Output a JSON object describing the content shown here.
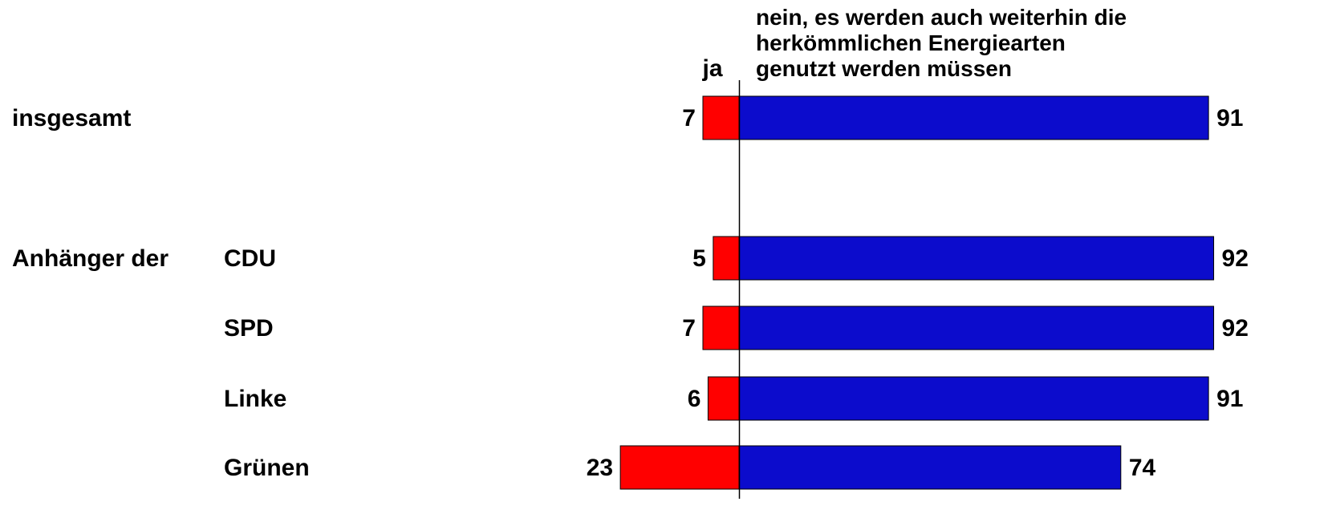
{
  "chart_data": {
    "type": "diverging-bar",
    "group_label": "Anhänger der",
    "categories": [
      "insgesamt",
      "CDU",
      "SPD",
      "Linke",
      "Grünen"
    ],
    "series": [
      {
        "name": "ja",
        "color": "#ff0000",
        "values": [
          7,
          5,
          7,
          6,
          23
        ]
      },
      {
        "name": "nein, es werden auch weiterhin die herkömmlichen Energiearten genutzt werden müssen",
        "color": "#0c0ccc",
        "values": [
          91,
          92,
          92,
          91,
          74
        ]
      }
    ]
  }
}
